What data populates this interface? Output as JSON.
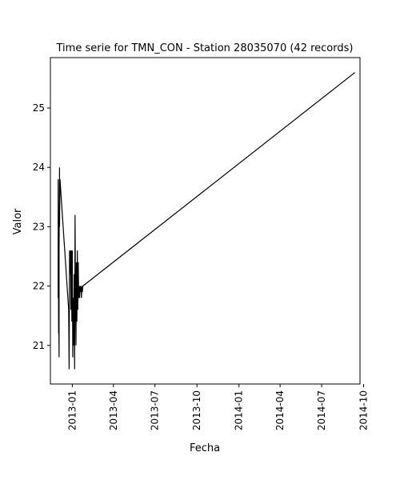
{
  "chart_data": {
    "type": "line",
    "title": "Time serie for TMN_CON - Station 28035070 (42 records)",
    "xlabel": "Fecha",
    "ylabel": "Valor",
    "x_axis_type": "date",
    "xlim": [
      "2012-11-14",
      "2014-09-23"
    ],
    "ylim": [
      20.35,
      25.85
    ],
    "x_ticks": [
      "2013-01-01",
      "2013-04-01",
      "2013-07-01",
      "2013-10-01",
      "2014-01-01",
      "2014-04-01",
      "2014-07-01",
      "2014-10-01"
    ],
    "x_tick_labels": [
      "2013-01",
      "2013-04",
      "2013-07",
      "2013-10",
      "2014-01",
      "2014-04",
      "2014-07",
      "2014-10"
    ],
    "y_ticks": [
      21,
      22,
      23,
      24,
      25
    ],
    "y_tick_labels": [
      "21",
      "22",
      "23",
      "24",
      "25"
    ],
    "grid": false,
    "line_color": "#000000",
    "series": [
      {
        "x": [
          "2012-12-01",
          "2012-12-01",
          "2012-12-02",
          "2012-12-02",
          "2012-12-03",
          "2012-12-03",
          "2012-12-04",
          "2012-12-04",
          "2012-12-05",
          "2012-12-24",
          "2012-12-25",
          "2012-12-26",
          "2012-12-27",
          "2012-12-28",
          "2012-12-29",
          "2012-12-30",
          "2012-12-31",
          "2013-01-01",
          "2013-01-02",
          "2013-01-03",
          "2013-01-04",
          "2013-01-05",
          "2013-01-06",
          "2013-01-07",
          "2013-01-08",
          "2013-01-09",
          "2013-01-10",
          "2013-01-11",
          "2013-01-12",
          "2013-01-13",
          "2013-01-14",
          "2013-01-15",
          "2013-01-16",
          "2013-01-17",
          "2013-01-18",
          "2013-01-19",
          "2013-01-20",
          "2013-01-21",
          "2013-01-22",
          "2013-01-23",
          "2013-01-24",
          "2014-09-12"
        ],
        "y": [
          21.8,
          23.8,
          21.2,
          22.0,
          20.8,
          22.6,
          24.0,
          23.0,
          23.8,
          21.6,
          20.6,
          22.6,
          22.2,
          22.6,
          21.6,
          22.6,
          21.4,
          22.6,
          20.8,
          21.8,
          21.0,
          22.2,
          20.6,
          23.2,
          21.8,
          21.0,
          22.4,
          21.4,
          22.6,
          21.6,
          22.4,
          21.8,
          22.0,
          21.8,
          22.0,
          21.9,
          22.0,
          21.8,
          22.0,
          21.9,
          22.0,
          25.6
        ]
      }
    ]
  }
}
